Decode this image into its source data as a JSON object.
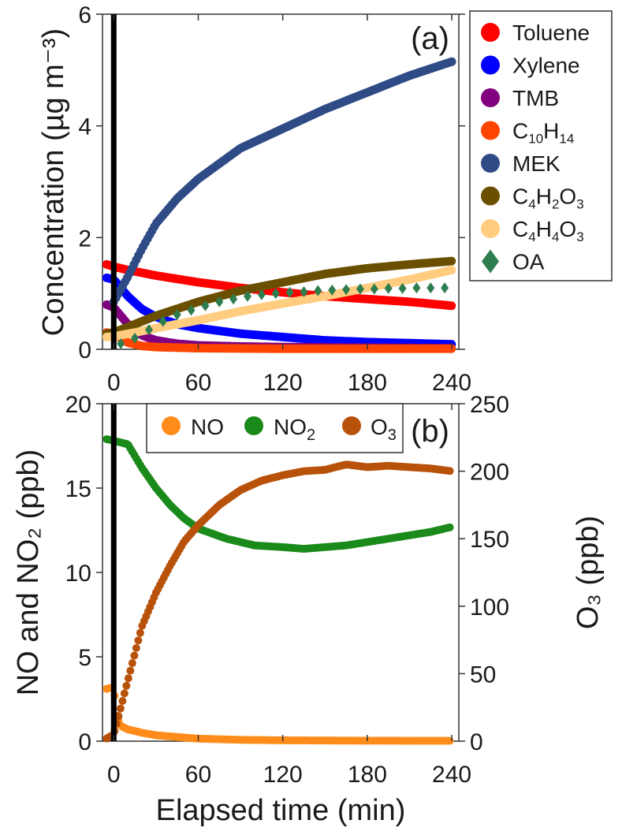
{
  "chart_data": [
    {
      "type": "scatter",
      "panel_label": "(a)",
      "ylabel": "Concentration (µg m⁻³)",
      "xlim": [
        -8,
        245
      ],
      "ylim": [
        0,
        6
      ],
      "x_ticks": [
        "0",
        "60",
        "120",
        "180",
        "240"
      ],
      "y_ticks": [
        "0",
        "2",
        "4",
        "6"
      ],
      "event_line_x": 0,
      "legend_placement": "outside right",
      "series": [
        {
          "name": "Toluene",
          "color": "#ff0000",
          "marker": "circle",
          "x": [
            -5,
            0,
            10,
            30,
            60,
            90,
            120,
            150,
            180,
            210,
            240
          ],
          "y": [
            1.52,
            1.48,
            1.42,
            1.32,
            1.2,
            1.1,
            1.02,
            0.95,
            0.9,
            0.85,
            0.78
          ]
        },
        {
          "name": "Xylene",
          "color": "#0000ff",
          "marker": "circle",
          "x": [
            -5,
            0,
            10,
            20,
            30,
            45,
            60,
            90,
            120,
            150,
            180,
            210,
            240
          ],
          "y": [
            1.28,
            1.25,
            0.95,
            0.72,
            0.58,
            0.45,
            0.38,
            0.28,
            0.22,
            0.16,
            0.13,
            0.11,
            0.09
          ]
        },
        {
          "name": "TMB",
          "color": "#800080",
          "marker": "circle",
          "x": [
            -5,
            0,
            10,
            20,
            30,
            45,
            60,
            90,
            120,
            180,
            240
          ],
          "y": [
            0.8,
            0.75,
            0.45,
            0.25,
            0.16,
            0.1,
            0.07,
            0.05,
            0.04,
            0.03,
            0.02
          ]
        },
        {
          "name": "C10H14",
          "color": "#ff4500",
          "marker": "circle",
          "x": [
            -5,
            0,
            10,
            20,
            30,
            60,
            120,
            180,
            240
          ],
          "y": [
            0.3,
            0.28,
            0.12,
            0.06,
            0.04,
            0.02,
            0.01,
            0.01,
            0.01
          ]
        },
        {
          "name": "MEK",
          "color": "#2f4b86",
          "marker": "circle",
          "x": [
            0,
            10,
            20,
            30,
            45,
            60,
            90,
            120,
            150,
            180,
            210,
            240
          ],
          "y": [
            0.85,
            1.3,
            1.8,
            2.25,
            2.7,
            3.05,
            3.6,
            3.95,
            4.3,
            4.6,
            4.9,
            5.15
          ]
        },
        {
          "name": "C4H2O3",
          "color": "#6b4f00",
          "marker": "circle",
          "x": [
            -5,
            0,
            15,
            30,
            60,
            90,
            120,
            150,
            180,
            210,
            240
          ],
          "y": [
            0.28,
            0.3,
            0.45,
            0.6,
            0.85,
            1.05,
            1.2,
            1.35,
            1.45,
            1.52,
            1.58
          ]
        },
        {
          "name": "C4H4O3",
          "color": "#ffcc80",
          "marker": "circle",
          "x": [
            -5,
            0,
            15,
            30,
            60,
            90,
            120,
            150,
            180,
            210,
            240
          ],
          "y": [
            0.22,
            0.23,
            0.3,
            0.38,
            0.52,
            0.68,
            0.82,
            0.95,
            1.1,
            1.25,
            1.42
          ]
        },
        {
          "name": "OA",
          "color": "#2e7d4f",
          "marker": "diamond",
          "x": [
            5,
            15,
            25,
            35,
            45,
            55,
            65,
            75,
            85,
            95,
            105,
            115,
            125,
            135,
            145,
            155,
            165,
            175,
            185,
            195,
            205,
            215,
            225,
            235
          ],
          "y": [
            0.1,
            0.2,
            0.35,
            0.5,
            0.62,
            0.7,
            0.78,
            0.85,
            0.9,
            0.95,
            0.98,
            1.0,
            1.02,
            1.03,
            1.05,
            1.06,
            1.07,
            1.08,
            1.08,
            1.09,
            1.09,
            1.1,
            1.1,
            1.1
          ]
        }
      ]
    },
    {
      "type": "scatter",
      "panel_label": "(b)",
      "xlabel": "Elapsed time (min)",
      "ylabel_left": "NO and NO₂ (ppb)",
      "ylabel_right": "O₃ (ppb)",
      "xlim": [
        -8,
        245
      ],
      "ylim_left": [
        0,
        20
      ],
      "ylim_right": [
        0,
        250
      ],
      "x_ticks": [
        "0",
        "60",
        "120",
        "180",
        "240"
      ],
      "y_ticks_left": [
        "0",
        "5",
        "10",
        "15",
        "20"
      ],
      "y_ticks_right": [
        "0",
        "50",
        "100",
        "150",
        "200",
        "250"
      ],
      "event_line_x": 0,
      "legend_placement": "top",
      "series": [
        {
          "name": "NO",
          "axis": "left",
          "color": "#ff8c1a",
          "marker": "circle",
          "x": [
            -5,
            0,
            2,
            5,
            10,
            20,
            30,
            45,
            60,
            90,
            120,
            180,
            240
          ],
          "y": [
            3.1,
            3.2,
            1.5,
            0.9,
            0.7,
            0.5,
            0.35,
            0.25,
            0.15,
            0.08,
            0.05,
            0.03,
            0.02
          ]
        },
        {
          "name": "NO₂",
          "axis": "left",
          "color": "#1a8a1a",
          "marker": "circle",
          "x": [
            -5,
            0,
            5,
            10,
            20,
            30,
            40,
            50,
            60,
            70,
            80,
            90,
            100,
            120,
            135,
            150,
            165,
            180,
            195,
            210,
            225,
            240
          ],
          "y": [
            17.9,
            17.8,
            17.7,
            17.6,
            16.2,
            15.0,
            14.0,
            13.2,
            12.6,
            12.3,
            12.0,
            11.8,
            11.6,
            11.5,
            11.4,
            11.5,
            11.6,
            11.8,
            12.0,
            12.2,
            12.4,
            12.7
          ]
        },
        {
          "name": "O₃",
          "axis": "right",
          "color": "#b8520a",
          "marker": "circle",
          "x": [
            -5,
            0,
            5,
            10,
            15,
            20,
            30,
            40,
            50,
            60,
            75,
            90,
            105,
            120,
            135,
            150,
            165,
            180,
            195,
            210,
            225,
            240
          ],
          "y": [
            2,
            5,
            25,
            45,
            65,
            85,
            110,
            130,
            148,
            160,
            175,
            186,
            193,
            197,
            200,
            201,
            205,
            203,
            204,
            203,
            202,
            200
          ]
        }
      ]
    }
  ],
  "legend_a": {
    "items": [
      {
        "label": "Toluene",
        "color": "#ff0000",
        "marker": "circle"
      },
      {
        "label": "Xylene",
        "color": "#0000ff",
        "marker": "circle"
      },
      {
        "label": "TMB",
        "color": "#800080",
        "marker": "circle"
      },
      {
        "label": "C10H14",
        "color": "#ff4500",
        "marker": "circle"
      },
      {
        "label": "MEK",
        "color": "#2f4b86",
        "marker": "circle"
      },
      {
        "label": "C4H2O3",
        "color": "#6b4f00",
        "marker": "circle"
      },
      {
        "label": "C4H4O3",
        "color": "#ffcc80",
        "marker": "circle"
      },
      {
        "label": "OA",
        "color": "#2e7d4f",
        "marker": "diamond"
      }
    ]
  },
  "legend_b": {
    "items": [
      {
        "label": "NO",
        "color": "#ff8c1a"
      },
      {
        "label": "NO2",
        "color": "#1a8a1a"
      },
      {
        "label": "O3",
        "color": "#b8520a"
      }
    ]
  }
}
